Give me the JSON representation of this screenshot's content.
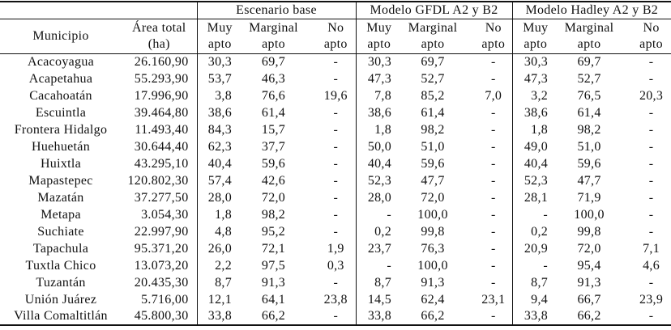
{
  "table": {
    "headers": {
      "municipio": "Municipio",
      "area_line1": "Área total",
      "area_line2": "(ha)",
      "muy_line1": "Muy",
      "muy_line2": "apto",
      "marginal_line1": "Marginal",
      "marginal_line2": "apto",
      "no_line1": "No",
      "no_line2": "apto"
    },
    "groups": [
      {
        "label": "Escenario base"
      },
      {
        "label": "Modelo GFDL A2 y B2"
      },
      {
        "label": "Modelo Hadley A2 y B2"
      }
    ],
    "rows": [
      {
        "municipio": "Acacoyagua",
        "area": "26.160,90",
        "base": [
          "30,3",
          "69,7",
          "-"
        ],
        "gfdl": [
          "30,3",
          "69,7",
          "-"
        ],
        "hadley": [
          "30,3",
          "69,7",
          "-"
        ]
      },
      {
        "municipio": "Acapetahua",
        "area": "55.293,90",
        "base": [
          "53,7",
          "46,3",
          "-"
        ],
        "gfdl": [
          "47,3",
          "52,7",
          "-"
        ],
        "hadley": [
          "47,3",
          "52,7",
          "-"
        ]
      },
      {
        "municipio": "Cacahoatán",
        "area": "17.996,90",
        "base": [
          "3,8",
          "76,6",
          "19,6"
        ],
        "gfdl": [
          "7,8",
          "85,2",
          "7,0"
        ],
        "hadley": [
          "3,2",
          "76,5",
          "20,3"
        ]
      },
      {
        "municipio": "Escuintla",
        "area": "39.464,80",
        "base": [
          "38,6",
          "61,4",
          "-"
        ],
        "gfdl": [
          "38,6",
          "61,4",
          "-"
        ],
        "hadley": [
          "38,6",
          "61,4",
          "-"
        ]
      },
      {
        "municipio": "Frontera Hidalgo",
        "area": "11.493,40",
        "base": [
          "84,3",
          "15,7",
          "-"
        ],
        "gfdl": [
          "1,8",
          "98,2",
          "-"
        ],
        "hadley": [
          "1,8",
          "98,2",
          "-"
        ]
      },
      {
        "municipio": "Huehuetán",
        "area": "30.644,40",
        "base": [
          "62,3",
          "37,7",
          "-"
        ],
        "gfdl": [
          "50,0",
          "51,0",
          "-"
        ],
        "hadley": [
          "49,0",
          "51,0",
          "-"
        ]
      },
      {
        "municipio": "Huixtla",
        "area": "43.295,10",
        "base": [
          "40,4",
          "59,6",
          "-"
        ],
        "gfdl": [
          "40,4",
          "59,6",
          "-"
        ],
        "hadley": [
          "40,4",
          "59,6",
          "-"
        ]
      },
      {
        "municipio": "Mapastepec",
        "area": "120.802,30",
        "base": [
          "57,4",
          "42,6",
          "-"
        ],
        "gfdl": [
          "52,3",
          "47,7",
          "-"
        ],
        "hadley": [
          "52,3",
          "47,7",
          "-"
        ]
      },
      {
        "municipio": "Mazatán",
        "area": "37.277,50",
        "base": [
          "28,0",
          "72,0",
          "-"
        ],
        "gfdl": [
          "28,0",
          "72,0",
          "-"
        ],
        "hadley": [
          "28,1",
          "71,9",
          "-"
        ]
      },
      {
        "municipio": "Metapa",
        "area": "3.054,30",
        "base": [
          "1,8",
          "98,2",
          "-"
        ],
        "gfdl": [
          "-",
          "100,0",
          "-"
        ],
        "hadley": [
          "-",
          "100,0",
          "-"
        ]
      },
      {
        "municipio": "Suchiate",
        "area": "22.997,90",
        "base": [
          "4,8",
          "95,2",
          "-"
        ],
        "gfdl": [
          "0,2",
          "99,8",
          "-"
        ],
        "hadley": [
          "0,2",
          "99,8",
          "-"
        ]
      },
      {
        "municipio": "Tapachula",
        "area": "95.371,20",
        "base": [
          "26,0",
          "72,1",
          "1,9"
        ],
        "gfdl": [
          "23,7",
          "76,3",
          "-"
        ],
        "hadley": [
          "20,9",
          "72,0",
          "7,1"
        ]
      },
      {
        "municipio": "Tuxtla Chico",
        "area": "13.073,20",
        "base": [
          "2,2",
          "97,5",
          "0,3"
        ],
        "gfdl": [
          "-",
          "100,0",
          "-"
        ],
        "hadley": [
          "-",
          "95,4",
          "4,6"
        ]
      },
      {
        "municipio": "Tuzantán",
        "area": "20.435,30",
        "base": [
          "8,7",
          "91,3",
          "-"
        ],
        "gfdl": [
          "8,7",
          "91,3",
          "-"
        ],
        "hadley": [
          "8,7",
          "91,3",
          "-"
        ]
      },
      {
        "municipio": "Unión Juárez",
        "area": "5.716,00",
        "base": [
          "12,1",
          "64,1",
          "23,8"
        ],
        "gfdl": [
          "14,5",
          "62,4",
          "23,1"
        ],
        "hadley": [
          "9,4",
          "66,7",
          "23,9"
        ]
      },
      {
        "municipio": "Villa Comaltitlán",
        "area": "45.800,30",
        "base": [
          "33,8",
          "66,2",
          "-"
        ],
        "gfdl": [
          "33,8",
          "66,2",
          "-"
        ],
        "hadley": [
          "33,8",
          "66,2",
          "-"
        ]
      }
    ]
  }
}
